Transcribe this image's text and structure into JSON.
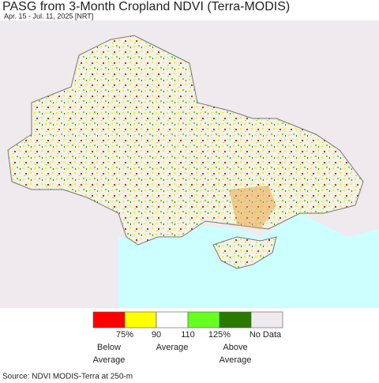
{
  "header": {
    "title": "PASG from 3-Month Cropland NDVI (Terra-MODIS)",
    "subtitle": "Apr. 15 - Jul. 11, 2025 [NRT]"
  },
  "legend": {
    "colors": [
      "#ff0000",
      "#ffff00",
      "#ffffff",
      "#66ff22",
      "#2a7a00",
      "#eeeaee"
    ],
    "labels": [
      "75%",
      "90",
      "110",
      "125%",
      "No Data"
    ],
    "captions": [
      [
        "Below",
        "Average"
      ],
      [
        "Average"
      ],
      [
        "Above",
        "Average"
      ]
    ]
  },
  "source": "Source: NDVI MODIS-Terra at 250-m"
}
